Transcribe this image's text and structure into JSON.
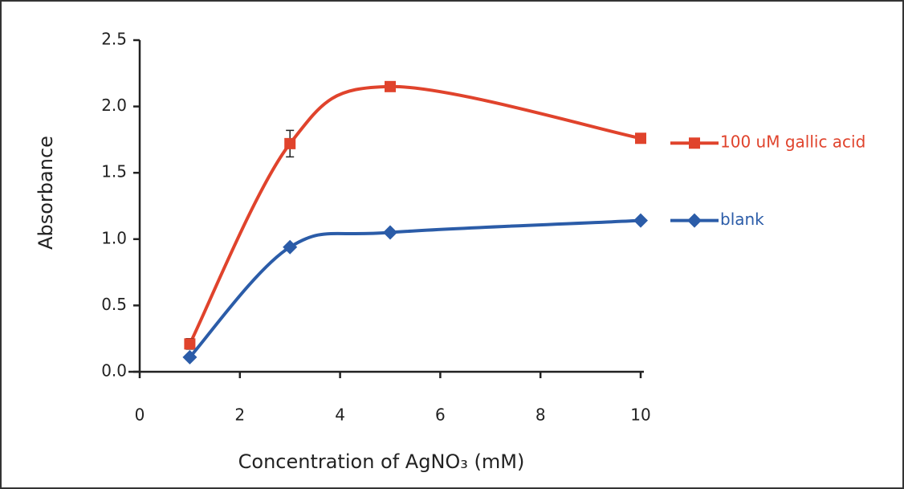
{
  "chart_data": {
    "type": "line",
    "x_label": "Concentration of AgNO₃ (mM)",
    "y_label": "Absorbance",
    "x": [
      1,
      3,
      5,
      10
    ],
    "series": [
      {
        "name": "100 uM gallic acid",
        "color": "#e0432c",
        "marker": "square",
        "values": [
          0.21,
          1.72,
          2.15,
          1.76
        ],
        "errors": [
          0.04,
          0.1,
          0.02,
          0.03
        ]
      },
      {
        "name": "blank",
        "color": "#2b5ca8",
        "marker": "diamond",
        "values": [
          0.11,
          0.94,
          1.05,
          1.14
        ]
      }
    ],
    "xlim": [
      0,
      10
    ],
    "xticks": [
      0,
      2,
      4,
      6,
      8,
      10
    ],
    "ylim": [
      0,
      2.5
    ],
    "yticks": [
      {
        "value": 0,
        "label": "0.0"
      },
      {
        "value": 0.5,
        "label": "0.5"
      },
      {
        "value": 1,
        "label": "1.0"
      },
      {
        "value": 1.5,
        "label": "1.5"
      },
      {
        "value": 2,
        "label": "2.0"
      },
      2.5
    ],
    "grid": false,
    "legend": "right"
  }
}
